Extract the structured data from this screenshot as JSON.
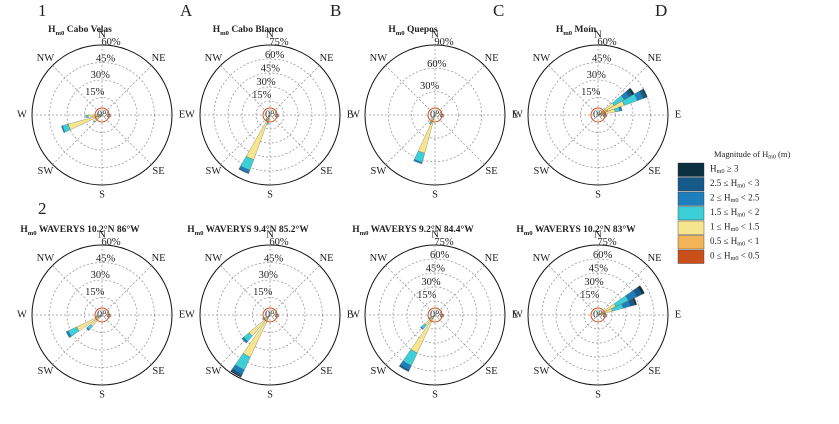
{
  "row_labels": [
    "1",
    "2"
  ],
  "column_labels": [
    "A",
    "B",
    "C",
    "D"
  ],
  "directions": [
    "N",
    "NE",
    "E",
    "SE",
    "S",
    "SW",
    "W",
    "NW"
  ],
  "legend": {
    "title": [
      "Magnitude of H",
      "m0",
      " (m)"
    ],
    "entries": [
      {
        "label": [
          "0 ≤ H",
          "m0",
          " < 0.5"
        ],
        "color": "#c9501a"
      },
      {
        "label": [
          "0.5 ≤ H",
          "m0",
          " < 1"
        ],
        "color": "#f1b456"
      },
      {
        "label": [
          "1 ≤ H",
          "m0",
          " < 1.5"
        ],
        "color": "#f8e68e"
      },
      {
        "label": [
          "1.5 ≤ H",
          "m0",
          " < 2"
        ],
        "color": "#3ccfd8"
      },
      {
        "label": [
          "2 ≤ H",
          "m0",
          " < 2.5"
        ],
        "color": "#1d80bd"
      },
      {
        "label": [
          "2.5 ≤ H",
          "m0",
          " < 3"
        ],
        "color": "#165a8a"
      },
      {
        "label": [
          "H",
          "m0",
          " ≥ 3"
        ],
        "color": "#0b3040"
      }
    ]
  },
  "chart_data": [
    {
      "type": "rose",
      "title": [
        "H",
        "m0",
        " Cabo Velas"
      ],
      "rlim": [
        0,
        60
      ],
      "rticks": [
        {
          "value": 0,
          "label": "0%"
        },
        {
          "value": 15,
          "label": "15%"
        },
        {
          "value": 30,
          "label": "30%"
        },
        {
          "value": 45,
          "label": "45%"
        },
        {
          "value": 60,
          "label": "60%"
        }
      ],
      "x": [
        230,
        250,
        265,
        280
      ],
      "stacks": [
        [
          0.5,
          1,
          1,
          0.5
        ],
        [
          2,
          4,
          3,
          1
        ],
        [
          6,
          25,
          8,
          2
        ],
        [
          1,
          5,
          2,
          0
        ],
        [
          0,
          1,
          0,
          0
        ],
        [
          0,
          0,
          0,
          0
        ],
        [
          0,
          0,
          0,
          0
        ]
      ]
    },
    {
      "type": "rose",
      "title": [
        "H",
        "m0",
        " Cabo Blanco"
      ],
      "rlim": [
        0,
        75
      ],
      "rticks": [
        {
          "value": 0,
          "label": "0%"
        },
        {
          "value": 15,
          "label": "15%"
        },
        {
          "value": 30,
          "label": "30%"
        },
        {
          "value": 45,
          "label": "45%"
        },
        {
          "value": 60,
          "label": "60%"
        },
        {
          "value": 75,
          "label": "75%"
        }
      ],
      "x": [
        195,
        205,
        215,
        235
      ],
      "stacks": [
        [
          0.5,
          1,
          0.5,
          0.3
        ],
        [
          2,
          5,
          1,
          0.5
        ],
        [
          6,
          45,
          4,
          1
        ],
        [
          2,
          12,
          2,
          0.5
        ],
        [
          0,
          3,
          0,
          0
        ],
        [
          0,
          1,
          0,
          0
        ],
        [
          0,
          0,
          0,
          0
        ]
      ]
    },
    {
      "type": "rose",
      "title": [
        "H",
        "m0",
        " Quepos"
      ],
      "rlim": [
        0,
        90
      ],
      "rticks": [
        {
          "value": 0,
          "label": "0%"
        },
        {
          "value": 30,
          "label": "30%"
        },
        {
          "value": 60,
          "label": "60%"
        },
        {
          "value": 90,
          "label": "90%"
        }
      ],
      "x": [
        200,
        210,
        230
      ],
      "stacks": [
        [
          1,
          0.5,
          0.3
        ],
        [
          5,
          2,
          1
        ],
        [
          45,
          8,
          2
        ],
        [
          12,
          3,
          1
        ],
        [
          2,
          0,
          0
        ],
        [
          0,
          0,
          0
        ],
        [
          0,
          0,
          0
        ]
      ]
    },
    {
      "type": "rose",
      "title": [
        "H",
        "m0",
        " Moín"
      ],
      "rlim": [
        0,
        60
      ],
      "rticks": [
        {
          "value": 0,
          "label": "0%"
        },
        {
          "value": 15,
          "label": "15%"
        },
        {
          "value": 30,
          "label": "30%"
        },
        {
          "value": 45,
          "label": "45%"
        },
        {
          "value": 60,
          "label": "60%"
        }
      ],
      "x": [
        55,
        65,
        75,
        90
      ],
      "stacks": [
        [
          1,
          1,
          1,
          0.5
        ],
        [
          5,
          8,
          6,
          2
        ],
        [
          10,
          15,
          8,
          3
        ],
        [
          10,
          12,
          4,
          0
        ],
        [
          5,
          5,
          2,
          0
        ],
        [
          3,
          3,
          0,
          0
        ],
        [
          2,
          1,
          0,
          0
        ]
      ]
    },
    {
      "type": "rose",
      "title": [
        "H",
        "m0",
        " WAVERYS 10.2°N 86°W"
      ],
      "rlim": [
        0,
        60
      ],
      "rticks": [
        {
          "value": 0,
          "label": "0%"
        },
        {
          "value": 15,
          "label": "15%"
        },
        {
          "value": 30,
          "label": "30%"
        },
        {
          "value": 45,
          "label": "45%"
        },
        {
          "value": 60,
          "label": "60%"
        }
      ],
      "x": [
        225,
        240,
        255
      ],
      "stacks": [
        [
          0.5,
          1,
          0.3
        ],
        [
          2,
          3,
          1
        ],
        [
          10,
          20,
          3
        ],
        [
          4,
          8,
          1
        ],
        [
          1,
          2,
          0
        ],
        [
          0,
          0,
          0
        ],
        [
          0,
          0,
          0
        ]
      ]
    },
    {
      "type": "rose",
      "title": [
        "H",
        "m0",
        " WAVERYS 9.4°N 85.2°W"
      ],
      "rlim": [
        0,
        60
      ],
      "rticks": [
        {
          "value": 0,
          "label": "0%"
        },
        {
          "value": 15,
          "label": "15%"
        },
        {
          "value": 30,
          "label": "30%"
        },
        {
          "value": 45,
          "label": "45%"
        },
        {
          "value": 60,
          "label": "60%"
        }
      ],
      "x": [
        210,
        225,
        240
      ],
      "stacks": [
        [
          1,
          0.5,
          0.3
        ],
        [
          4,
          3,
          1
        ],
        [
          35,
          20,
          4
        ],
        [
          12,
          6,
          2
        ],
        [
          4,
          2,
          0
        ],
        [
          2,
          0,
          0
        ],
        [
          1,
          0,
          0
        ]
      ]
    },
    {
      "type": "rose",
      "title": [
        "H",
        "m0",
        " WAVERYS 9.2°N 84.4°W"
      ],
      "rlim": [
        0,
        75
      ],
      "rticks": [
        {
          "value": 0,
          "label": "0%"
        },
        {
          "value": 15,
          "label": "15%"
        },
        {
          "value": 30,
          "label": "30%"
        },
        {
          "value": 45,
          "label": "45%"
        },
        {
          "value": 60,
          "label": "60%"
        },
        {
          "value": 75,
          "label": "75%"
        }
      ],
      "x": [
        210,
        225,
        240
      ],
      "stacks": [
        [
          1,
          0.5,
          0.3
        ],
        [
          4,
          2,
          1
        ],
        [
          40,
          12,
          4
        ],
        [
          15,
          5,
          2
        ],
        [
          5,
          1,
          0.5
        ],
        [
          2,
          0,
          0
        ],
        [
          0,
          0,
          0
        ]
      ]
    },
    {
      "type": "rose",
      "title": [
        "H",
        "m0",
        " WAVERYS 10.2°N 83°W"
      ],
      "rlim": [
        0,
        75
      ],
      "rticks": [
        {
          "value": 0,
          "label": "0%"
        },
        {
          "value": 15,
          "label": "15%"
        },
        {
          "value": 30,
          "label": "30%"
        },
        {
          "value": 45,
          "label": "45%"
        },
        {
          "value": 60,
          "label": "60%"
        },
        {
          "value": 75,
          "label": "75%"
        }
      ],
      "x": [
        60,
        70,
        80
      ],
      "stacks": [
        [
          1,
          1,
          0.5
        ],
        [
          5,
          5,
          2
        ],
        [
          15,
          10,
          4
        ],
        [
          15,
          12,
          2
        ],
        [
          10,
          8,
          0
        ],
        [
          6,
          5,
          0
        ],
        [
          3,
          2,
          0
        ]
      ]
    }
  ]
}
